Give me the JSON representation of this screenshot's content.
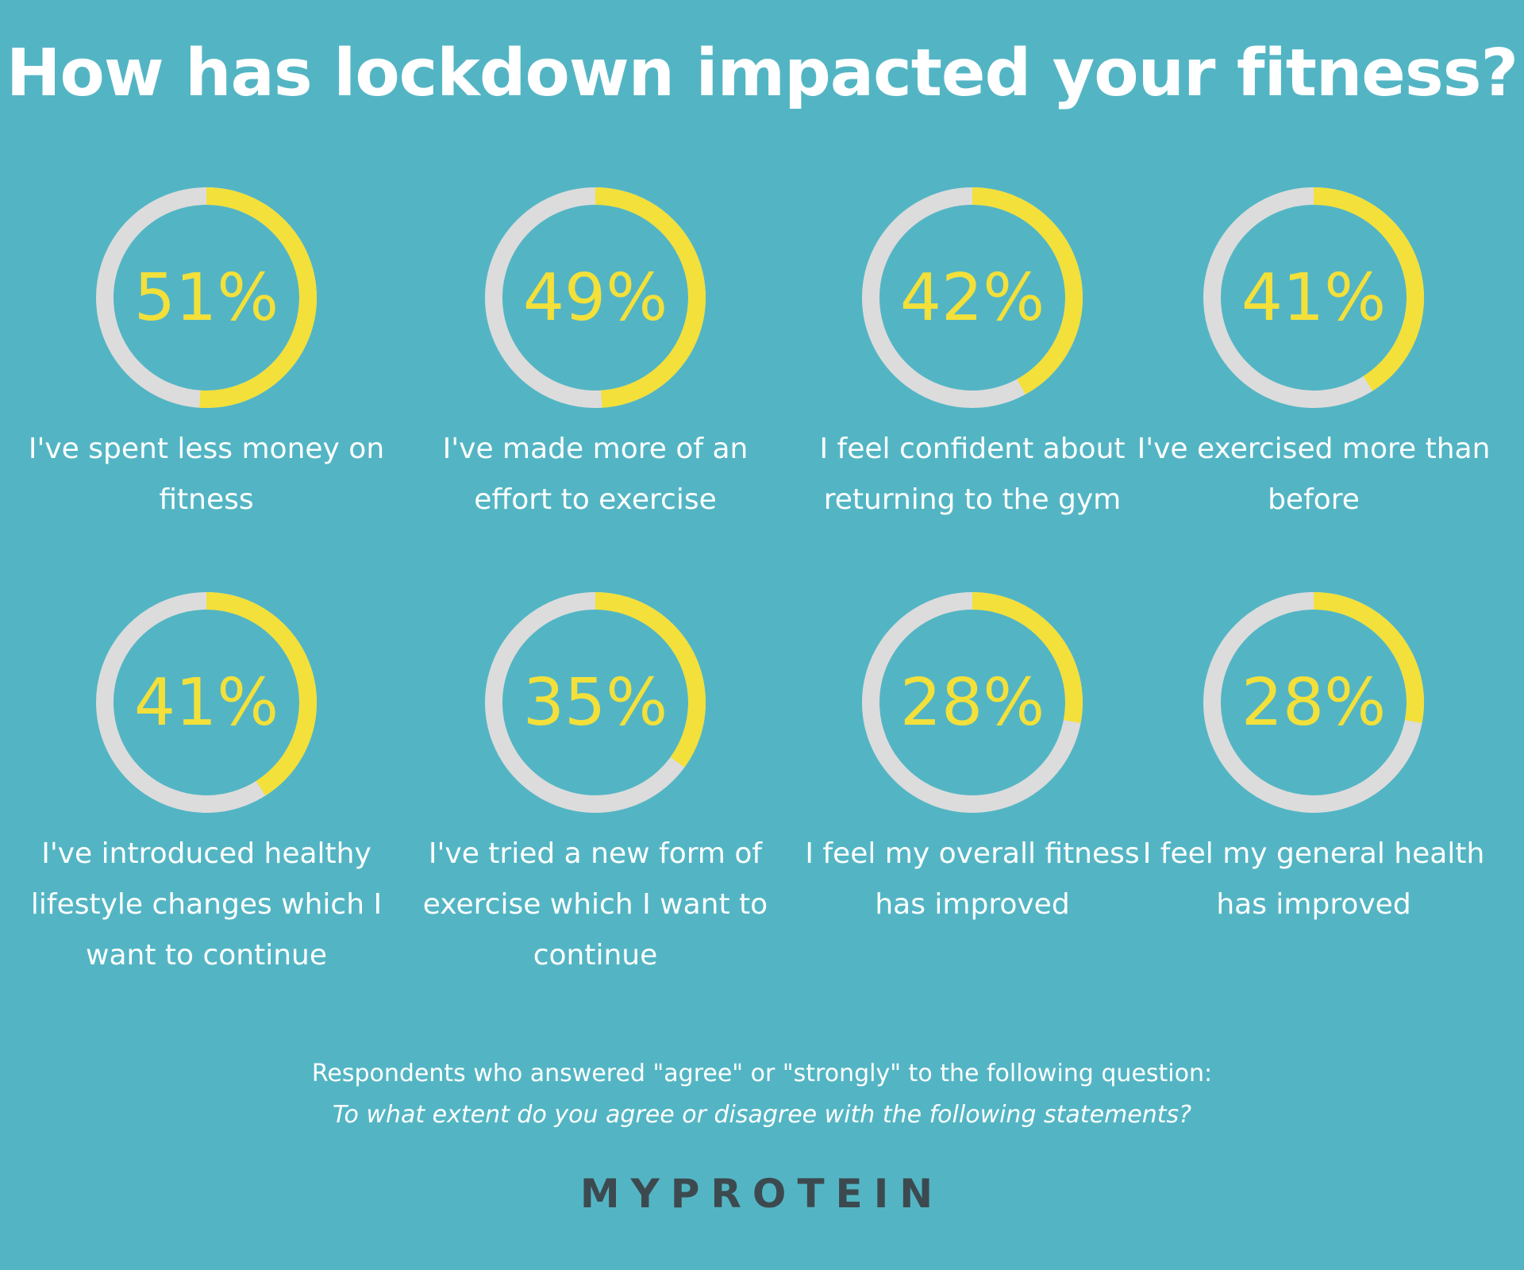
{
  "title": "How has lockdown impacted your fitness?",
  "colors": {
    "background": "#53b5c4",
    "accent": "#f3e03a",
    "track": "#dcdcdc",
    "text": "#ffffff"
  },
  "chart_data": {
    "type": "pie",
    "title": "How has lockdown impacted your fitness?",
    "unit": "%",
    "items": [
      {
        "value": 51,
        "display": "51%",
        "label": "I've spent less money on fitness"
      },
      {
        "value": 49,
        "display": "49%",
        "label": "I've made more of an effort to exercise"
      },
      {
        "value": 42,
        "display": "42%",
        "label": "I feel confident about returning to the gym"
      },
      {
        "value": 41,
        "display": "41%",
        "label": "I've exercised more than before"
      },
      {
        "value": 41,
        "display": "41%",
        "label": "I've introduced healthy lifestyle changes which I want to continue"
      },
      {
        "value": 35,
        "display": "35%",
        "label": "I've tried a new form of exercise which I want to continue"
      },
      {
        "value": 28,
        "display": "28%",
        "label": "I feel my overall fitness has improved"
      },
      {
        "value": 28,
        "display": "28%",
        "label": "I feel my general health has improved"
      }
    ]
  },
  "footnote": {
    "line1": "Respondents who answered \"agree\" or \"strongly\" to the following question:",
    "line2": "To what extent do you agree or disagree with the following statements?"
  },
  "logo": "MYPROTEIN"
}
